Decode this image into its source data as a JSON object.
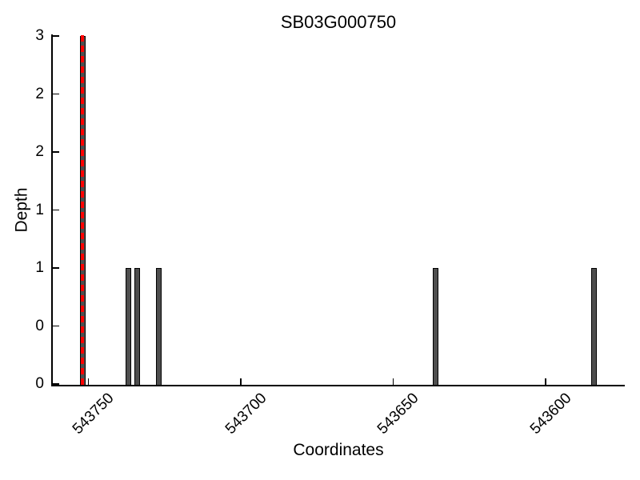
{
  "chart_data": {
    "type": "bar",
    "title": "SB03G000750",
    "xlabel": "Coordinates",
    "ylabel": "Depth",
    "x_axis_reversed": true,
    "xlim": [
      543762,
      543574
    ],
    "ylim": [
      0,
      3
    ],
    "grid": false,
    "legend": "none",
    "x_ticks": [
      {
        "value": 543750,
        "label": "543750"
      },
      {
        "value": 543700,
        "label": "543700"
      },
      {
        "value": 543650,
        "label": "543650"
      },
      {
        "value": 543600,
        "label": "543600"
      }
    ],
    "y_ticks": [
      {
        "value": 0,
        "label": "0"
      },
      {
        "value": 0.5,
        "label": "0"
      },
      {
        "value": 1,
        "label": "1"
      },
      {
        "value": 1.5,
        "label": "1"
      },
      {
        "value": 2,
        "label": "2"
      },
      {
        "value": 2.5,
        "label": "2"
      },
      {
        "value": 3,
        "label": "3"
      }
    ],
    "bars": [
      {
        "coordinate": 543752,
        "depth": 3,
        "highlighted": true
      },
      {
        "coordinate": 543737,
        "depth": 1,
        "highlighted": false
      },
      {
        "coordinate": 543734,
        "depth": 1,
        "highlighted": false
      },
      {
        "coordinate": 543727,
        "depth": 1,
        "highlighted": false
      },
      {
        "coordinate": 543636,
        "depth": 1,
        "highlighted": false
      },
      {
        "coordinate": 543584,
        "depth": 1,
        "highlighted": false
      }
    ],
    "marker_line": {
      "coordinate": 543752,
      "style": "dashed"
    },
    "colors": {
      "bar_fill": "#4e4e4e",
      "bar_edge": "#000000",
      "axis": "#000000",
      "marker": "#ff0000",
      "background": "#ffffff",
      "text": "#000000"
    }
  }
}
